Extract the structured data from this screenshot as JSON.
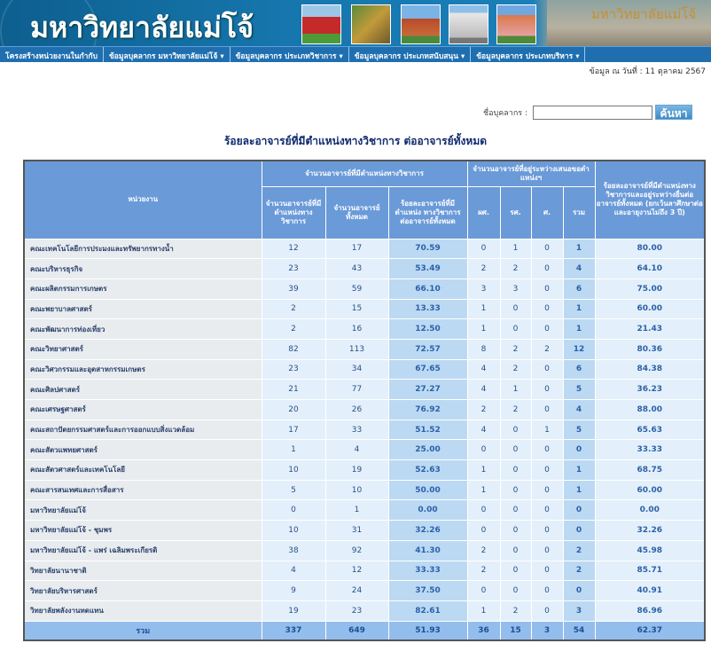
{
  "header": {
    "university_name": "มหาวิทยาลัยแม่โจ้",
    "campus_sign": "มหาวิทยาลัยแม่โจ้"
  },
  "nav": [
    "โครงสร้างหน่วยงานในกำกับ",
    "ข้อมูลบุคลากร มหาวิทยาลัยแม่โจ้ ▾",
    "ข้อมูลบุคลากร ประเภทวิชาการ ▾",
    "ข้อมูลบุคลากร ประเภทสนับสนุน ▾",
    "ข้อมูลบุคลากร ประเภทบริหาร ▾"
  ],
  "date_text": "ข้อมูล ณ วันที่ : 11 ตุลาคม 2567",
  "search": {
    "label": "ชื่อบุคลากร :",
    "value": "",
    "button": "ค้นหา"
  },
  "title": "ร้อยละอาจารย์ที่มีตำแหน่งทางวิชาการ ต่ออาจารย์ทั้งหมด",
  "table": {
    "headers": {
      "unit": "หน่วยงาน",
      "group1": "จำนวนอาจารย์ที่มีตำแหน่งทางวิชาการ",
      "group2": "จำนวนอาจารย์ที่อยู่ระหว่างเสนอขอตำแหน่งฯ",
      "last": "ร้อยละอาจารย์ที่มีตำแหน่งทางวิชาการและอยู่ระหว่างยื่นต่ออาจารย์ทั้งหมด (ยกเว้นลาศึกษาต่อและอายุงานไม่ถึง 3 ปี)",
      "c1": "จำนวนอาจารย์ที่มีตำแหน่งทางวิชาการ",
      "c2": "จำนวนอาจารย์ทั้งหมด",
      "c3": "ร้อยละอาจารย์ที่มีตำแหน่ง ทางวิชาการ ต่ออาจารย์ทั้งหมด",
      "c4": "ผศ.",
      "c5": "รศ.",
      "c6": "ศ.",
      "c7": "รวม"
    },
    "rows": [
      [
        "คณะเทคโนโลยีการประมงและทรัพยากรทางน้ำ",
        "12",
        "17",
        "70.59",
        "0",
        "1",
        "0",
        "1",
        "80.00"
      ],
      [
        "คณะบริหารธุรกิจ",
        "23",
        "43",
        "53.49",
        "2",
        "2",
        "0",
        "4",
        "64.10"
      ],
      [
        "คณะผลิตกรรมการเกษตร",
        "39",
        "59",
        "66.10",
        "3",
        "3",
        "0",
        "6",
        "75.00"
      ],
      [
        "คณะพยาบาลศาสตร์",
        "2",
        "15",
        "13.33",
        "1",
        "0",
        "0",
        "1",
        "60.00"
      ],
      [
        "คณะพัฒนาการท่องเที่ยว",
        "2",
        "16",
        "12.50",
        "1",
        "0",
        "0",
        "1",
        "21.43"
      ],
      [
        "คณะวิทยาศาสตร์",
        "82",
        "113",
        "72.57",
        "8",
        "2",
        "2",
        "12",
        "80.36"
      ],
      [
        "คณะวิศวกรรมและอุตสาหกรรมเกษตร",
        "23",
        "34",
        "67.65",
        "4",
        "2",
        "0",
        "6",
        "84.38"
      ],
      [
        "คณะศิลปศาสตร์",
        "21",
        "77",
        "27.27",
        "4",
        "1",
        "0",
        "5",
        "36.23"
      ],
      [
        "คณะเศรษฐศาสตร์",
        "20",
        "26",
        "76.92",
        "2",
        "2",
        "0",
        "4",
        "88.00"
      ],
      [
        "คณะสถาปัตยกรรมศาสตร์และการออกแบบสิ่งแวดล้อม",
        "17",
        "33",
        "51.52",
        "4",
        "0",
        "1",
        "5",
        "65.63"
      ],
      [
        "คณะสัตวแพทยศาสตร์",
        "1",
        "4",
        "25.00",
        "0",
        "0",
        "0",
        "0",
        "33.33"
      ],
      [
        "คณะสัตวศาสตร์และเทคโนโลยี",
        "10",
        "19",
        "52.63",
        "1",
        "0",
        "0",
        "1",
        "68.75"
      ],
      [
        "คณะสารสนเทศและการสื่อสาร",
        "5",
        "10",
        "50.00",
        "1",
        "0",
        "0",
        "1",
        "60.00"
      ],
      [
        "มหาวิทยาลัยแม่โจ้",
        "0",
        "1",
        "0.00",
        "0",
        "0",
        "0",
        "0",
        "0.00"
      ],
      [
        "มหาวิทยาลัยแม่โจ้ - ชุมพร",
        "10",
        "31",
        "32.26",
        "0",
        "0",
        "0",
        "0",
        "32.26"
      ],
      [
        "มหาวิทยาลัยแม่โจ้ - แพร่ เฉลิมพระเกียรติ",
        "38",
        "92",
        "41.30",
        "2",
        "0",
        "0",
        "2",
        "45.98"
      ],
      [
        "วิทยาลัยนานาชาติ",
        "4",
        "12",
        "33.33",
        "2",
        "0",
        "0",
        "2",
        "85.71"
      ],
      [
        "วิทยาลัยบริหารศาสตร์",
        "9",
        "24",
        "37.50",
        "0",
        "0",
        "0",
        "0",
        "40.91"
      ],
      [
        "วิทยาลัยพลังงานทดแทน",
        "19",
        "23",
        "82.61",
        "1",
        "2",
        "0",
        "3",
        "86.96"
      ]
    ],
    "total": [
      "รวม",
      "337",
      "649",
      "51.93",
      "36",
      "15",
      "3",
      "54",
      "62.37"
    ]
  }
}
